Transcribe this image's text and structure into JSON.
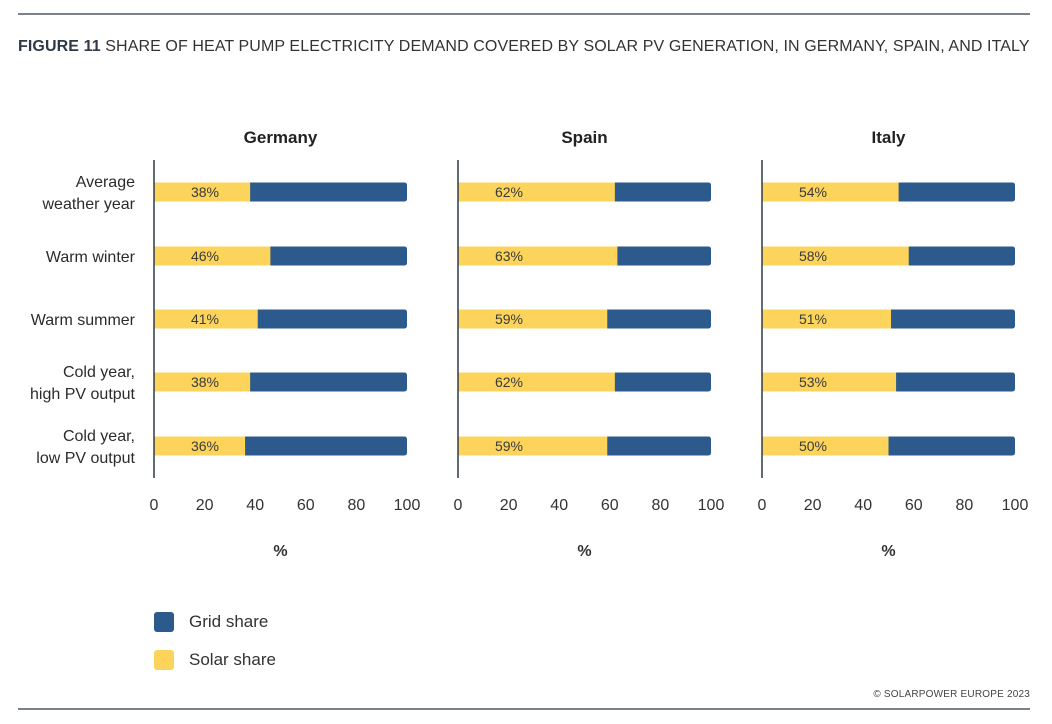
{
  "figure": {
    "number_label": "FIGURE 11",
    "title_text": "SHARE OF HEAT PUMP ELECTRICITY DEMAND COVERED BY SOLAR PV GENERATION, IN GERMANY, SPAIN, AND ITALY",
    "copyright": "© SOLARPOWER EUROPE 2023"
  },
  "colors": {
    "grid": "#2d5a8c",
    "solar": "#fcd45c",
    "axis": "#2e3a47"
  },
  "chart_data": {
    "type": "bar",
    "orientation": "horizontal",
    "stacked": true,
    "title": "Share of heat pump electricity demand covered by solar PV generation, in Germany, Spain, and Italy",
    "categories": [
      "Average weather year",
      "Warm winter",
      "Warm summer",
      "Cold year, high PV output",
      "Cold year, low PV output"
    ],
    "category_lines": [
      [
        "Average",
        "weather year"
      ],
      [
        "Warm winter"
      ],
      [
        "Warm summer"
      ],
      [
        "Cold year,",
        "high PV output"
      ],
      [
        "Cold year,",
        "low PV output"
      ]
    ],
    "xlabel": "%",
    "xlim": [
      0,
      100
    ],
    "xticks": [
      0,
      20,
      40,
      60,
      80,
      100
    ],
    "legend": [
      {
        "name": "Grid share",
        "color": "#2d5a8c"
      },
      {
        "name": "Solar share",
        "color": "#fcd45c"
      }
    ],
    "legend_position": "bottom-left",
    "panels": [
      {
        "title": "Germany",
        "series": [
          {
            "name": "Solar share",
            "values": [
              38,
              46,
              41,
              38,
              36
            ]
          },
          {
            "name": "Grid share",
            "values": [
              62,
              54,
              59,
              62,
              64
            ]
          }
        ],
        "labels": [
          "38%",
          "46%",
          "41%",
          "38%",
          "36%"
        ]
      },
      {
        "title": "Spain",
        "series": [
          {
            "name": "Solar share",
            "values": [
              62,
              63,
              59,
              62,
              59
            ]
          },
          {
            "name": "Grid share",
            "values": [
              38,
              37,
              41,
              38,
              41
            ]
          }
        ],
        "labels": [
          "62%",
          "63%",
          "59%",
          "62%",
          "59%"
        ]
      },
      {
        "title": "Italy",
        "series": [
          {
            "name": "Solar share",
            "values": [
              54,
              58,
              51,
              53,
              50
            ]
          },
          {
            "name": "Grid share",
            "values": [
              46,
              42,
              49,
              47,
              50
            ]
          }
        ],
        "labels": [
          "54%",
          "58%",
          "51%",
          "53%",
          "50%"
        ]
      }
    ]
  }
}
